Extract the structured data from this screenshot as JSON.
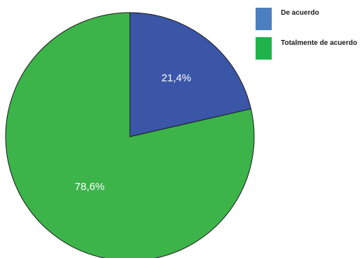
{
  "chart_data": {
    "type": "pie",
    "categories": [
      "De acuerdo",
      "Totalmente de acuerdo"
    ],
    "values": [
      21.4,
      78.6
    ],
    "data_labels": [
      "21,4%",
      "78,6%"
    ],
    "colors": [
      "#3b55a7",
      "#3cb44a"
    ],
    "legend_swatch_colors": [
      "#4c7fc0",
      "#1fb34b"
    ],
    "start_angle": "12 o'clock",
    "direction": "clockwise",
    "legend": {
      "placement": "top-right",
      "entries": [
        "De acuerdo",
        "Totalmente de acuerdo"
      ]
    }
  }
}
